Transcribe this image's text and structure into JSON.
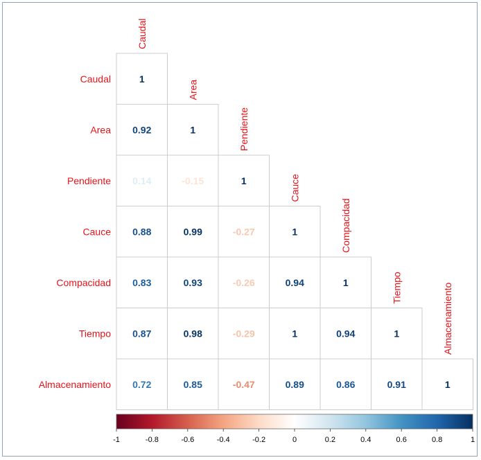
{
  "chart_data": {
    "type": "heatmap",
    "subtype": "correlation-lower-triangle",
    "variables": [
      "Caudal",
      "Area",
      "Pendiente",
      "Cauce",
      "Compacidad",
      "Tiempo",
      "Almacenamiento"
    ],
    "matrix": [
      [
        1
      ],
      [
        0.92,
        1
      ],
      [
        0.14,
        -0.15,
        1
      ],
      [
        0.88,
        0.99,
        -0.27,
        1
      ],
      [
        0.83,
        0.93,
        -0.26,
        0.94,
        1
      ],
      [
        0.87,
        0.98,
        -0.29,
        1,
        0.94,
        1
      ],
      [
        0.72,
        0.85,
        -0.47,
        0.89,
        0.86,
        0.91,
        1
      ]
    ],
    "display_values": [
      [
        "1"
      ],
      [
        "0.92",
        "1"
      ],
      [
        "0.14",
        "-0.15",
        "1"
      ],
      [
        "0.88",
        "0.99",
        "-0.27",
        "1"
      ],
      [
        "0.83",
        "0.93",
        "-0.26",
        "0.94",
        "1"
      ],
      [
        "0.87",
        "0.98",
        "-0.29",
        "1",
        "0.94",
        "1"
      ],
      [
        "0.72",
        "0.85",
        "-0.47",
        "0.89",
        "0.86",
        "0.91",
        "1"
      ]
    ],
    "colorbar": {
      "range": [
        -1,
        1
      ],
      "ticks": [
        "-1",
        "-0.8",
        "-0.6",
        "-0.4",
        "-0.2",
        "0",
        "0.2",
        "0.4",
        "0.6",
        "0.8",
        "1"
      ],
      "palette": [
        "#67001f",
        "#b2182b",
        "#d6604d",
        "#f4a582",
        "#fddbc7",
        "#ffffff",
        "#d1e5f0",
        "#92c5de",
        "#4393c3",
        "#2166ac",
        "#053061"
      ],
      "position": "bottom"
    },
    "label_color": "#e8131a"
  }
}
